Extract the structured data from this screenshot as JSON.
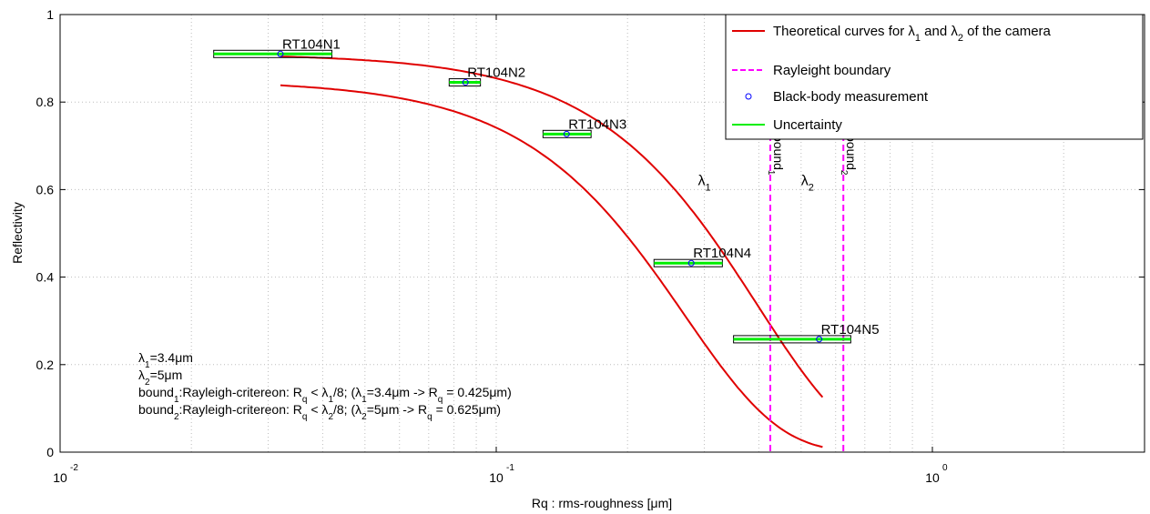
{
  "chart_data": {
    "type": "line",
    "x_scale": "log",
    "xlim": [
      0.01,
      2.5
    ],
    "ylim": [
      0,
      1
    ],
    "grid": true,
    "xlabel": "Rq : rms-roughness [μm]",
    "ylabel": "Reflectivity",
    "x_ticks": [
      {
        "base": "10",
        "exp": "-2"
      },
      {
        "base": "10",
        "exp": "-1"
      },
      {
        "base": "10",
        "exp": "0"
      }
    ],
    "y_ticks": [
      "0",
      "0.2",
      "0.4",
      "0.6",
      "0.8",
      "1"
    ],
    "legend_position": "top-right",
    "legend": [
      {
        "sym": "line",
        "text": "Theoretical curves for λ₁ and λ₂ of the camera",
        "color": "#e00000"
      },
      {
        "sym": "dash",
        "text": "Rayleight boundary",
        "color": "#ff00ff"
      },
      {
        "sym": "circle",
        "text": "Black-body measurement",
        "color": "#0000ff"
      },
      {
        "sym": "line",
        "text": "Uncertainty",
        "color": "#00ee00"
      }
    ],
    "series": [
      {
        "name": "λ₁",
        "kind": "theoretical",
        "color": "#e00000",
        "lambda_um": 3.4,
        "x_range": [
          0.032,
          0.56
        ]
      },
      {
        "name": "λ₂",
        "kind": "theoretical",
        "color": "#e00000",
        "lambda_um": 5,
        "x_range": [
          0.032,
          0.56
        ]
      }
    ],
    "boundaries": [
      {
        "label": "bound₁",
        "x": 0.425,
        "color": "#ff00ff"
      },
      {
        "label": "bound₂",
        "x": 0.625,
        "color": "#ff00ff"
      }
    ],
    "measurements": [
      {
        "label": "RT104N1",
        "x": 0.032,
        "y": 0.91,
        "x_low": 0.0225,
        "x_high": 0.042
      },
      {
        "label": "RT104N2",
        "x": 0.085,
        "y": 0.845,
        "x_low": 0.078,
        "x_high": 0.092
      },
      {
        "label": "RT104N3",
        "x": 0.145,
        "y": 0.727,
        "x_low": 0.128,
        "x_high": 0.165
      },
      {
        "label": "RT104N4",
        "x": 0.28,
        "y": 0.432,
        "x_low": 0.23,
        "x_high": 0.33
      },
      {
        "label": "RT104N5",
        "x": 0.55,
        "y": 0.258,
        "x_low": 0.35,
        "x_high": 0.65
      }
    ],
    "curve_labels": [
      {
        "text": "λ₁",
        "x": 0.29,
        "y": 0.61
      },
      {
        "text": "λ₂",
        "x": 0.5,
        "y": 0.61
      }
    ],
    "annotations": [
      "λ₁=3.4μm",
      "λ₂=5μm",
      "bound₁:Rayleigh-critereon: Rq < λ₁/8; (λ₁=3.4μm -> Rq = 0.425μm)",
      "bound₂:Rayleigh-critereon: Rq < λ₂/8; (λ₂=5μm -> Rq = 0.625μm)"
    ]
  }
}
